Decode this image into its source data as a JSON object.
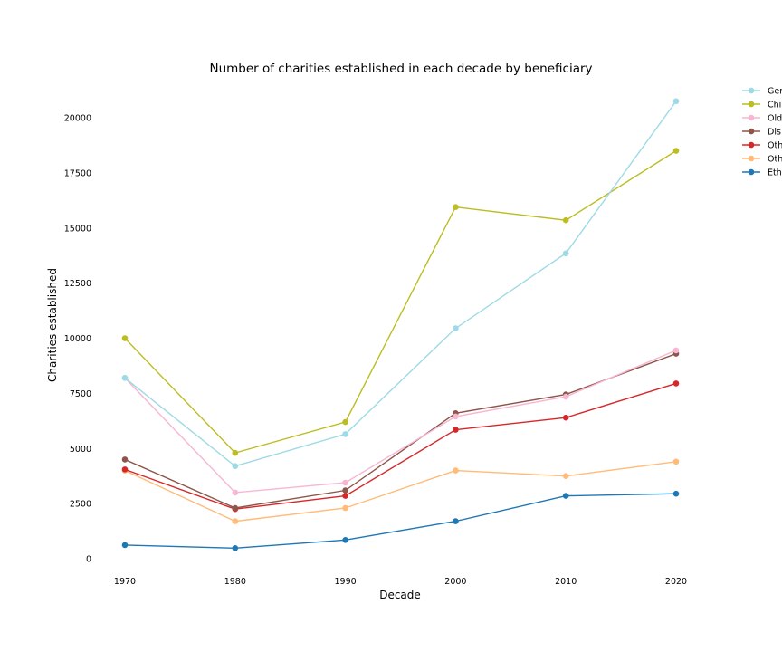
{
  "chart_data": {
    "type": "line",
    "title": "Number of charities established in each decade by beneficiary",
    "xlabel": "Decade",
    "ylabel": "Charities established",
    "x": [
      1970,
      1980,
      1990,
      2000,
      2010,
      2020
    ],
    "x_tick_labels": [
      "1970",
      "1980",
      "1990",
      "2000",
      "2010",
      "2020"
    ],
    "y_ticks": [
      0,
      2500,
      5000,
      7500,
      10000,
      12500,
      15000,
      17500,
      20000
    ],
    "y_tick_labels": [
      "0",
      "2500",
      "5000",
      "7500",
      "10000",
      "12500",
      "15000",
      "17500",
      "20000"
    ],
    "ylim": [
      -800,
      21800
    ],
    "grid": false,
    "legend_position": "top-right",
    "series": [
      {
        "name": "Ger",
        "color": "#9edae5",
        "values": [
          8200,
          4200,
          5650,
          10450,
          13850,
          20750
        ]
      },
      {
        "name": "Chi",
        "color": "#bcbd22",
        "values": [
          10000,
          4800,
          6200,
          15950,
          15350,
          18500
        ]
      },
      {
        "name": "Old",
        "color": "#f7b6d2",
        "values": [
          8200,
          3000,
          3450,
          6450,
          7350,
          9450
        ]
      },
      {
        "name": "Dis",
        "color": "#8c564b",
        "values": [
          4500,
          2300,
          3100,
          6600,
          7450,
          9300
        ]
      },
      {
        "name": "Oth",
        "color": "#d62728",
        "values": [
          4050,
          2250,
          2850,
          5850,
          6400,
          7950
        ]
      },
      {
        "name": "Oth",
        "color": "#ffbb78",
        "values": [
          4000,
          1700,
          2300,
          4000,
          3750,
          4400
        ]
      },
      {
        "name": "Eth",
        "color": "#1f77b4",
        "values": [
          620,
          480,
          850,
          1700,
          2850,
          2950
        ]
      }
    ]
  }
}
